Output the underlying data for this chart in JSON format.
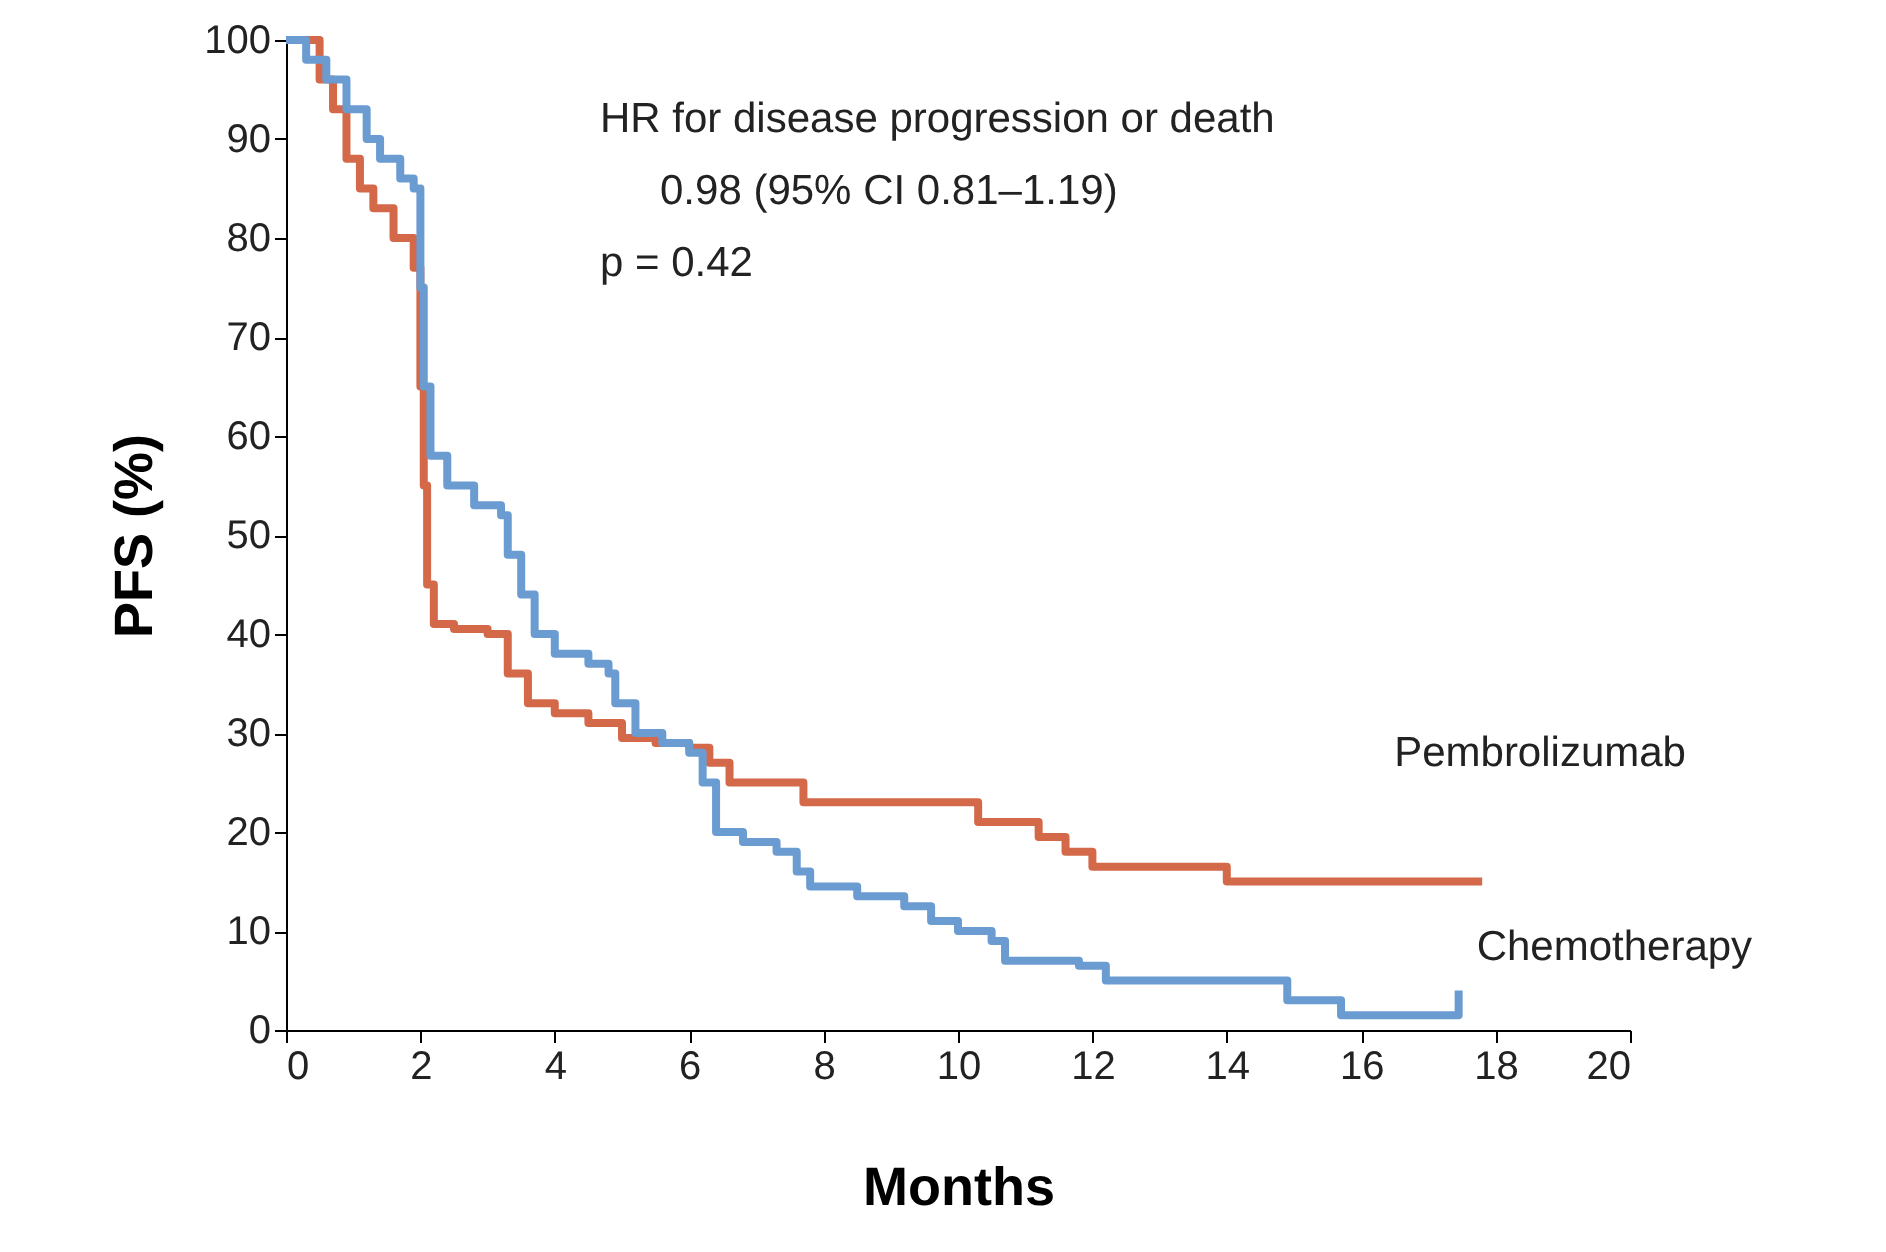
{
  "chart_data": {
    "type": "step",
    "xlabel": "Months",
    "ylabel": "PFS (%)",
    "annotations": [
      "HR for disease progression or death",
      "0.98 (95% CI 0.81–1.19)",
      "p = 0.42"
    ],
    "xlim": [
      0,
      20
    ],
    "xticks": [
      0,
      2,
      4,
      6,
      8,
      10,
      12,
      14,
      16,
      18,
      20
    ],
    "ylim": [
      0,
      100
    ],
    "yticks": [
      0,
      10,
      20,
      30,
      40,
      50,
      60,
      70,
      80,
      90,
      100
    ],
    "grid": false,
    "legend": false,
    "line_style": "solid",
    "series": [
      {
        "name": "Pembrolizumab",
        "color": "#d4694a",
        "x": [
          0,
          0.5,
          0.7,
          0.9,
          1.1,
          1.3,
          1.6,
          1.9,
          2.0,
          2.05,
          2.1,
          2.2,
          2.5,
          3.0,
          3.3,
          3.6,
          4.0,
          4.5,
          5.0,
          5.5,
          6.0,
          6.3,
          6.6,
          7.0,
          7.7,
          9.7,
          10.3,
          11.2,
          11.6,
          12.0,
          12.7,
          14.0,
          17.8
        ],
        "values": [
          100,
          96,
          93,
          88,
          85,
          83,
          80,
          77,
          65,
          55,
          45,
          41,
          40.5,
          40,
          36,
          33,
          32,
          31,
          29.5,
          29,
          28.5,
          27,
          25,
          25,
          23,
          23,
          21,
          19.5,
          18,
          16.5,
          16.5,
          15,
          15
        ]
      },
      {
        "name": "Chemotherapy",
        "color": "#6a9bd1",
        "x": [
          0,
          0.3,
          0.6,
          0.9,
          1.2,
          1.4,
          1.7,
          1.9,
          2.0,
          2.05,
          2.15,
          2.4,
          2.8,
          3.2,
          3.3,
          3.5,
          3.7,
          4.0,
          4.5,
          4.8,
          4.9,
          5.2,
          5.6,
          6.0,
          6.2,
          6.4,
          6.8,
          7.3,
          7.6,
          7.8,
          8.5,
          9.2,
          9.6,
          10.0,
          10.5,
          10.7,
          11.8,
          12.2,
          14.0,
          14.9,
          15.7,
          17.4,
          17.45
        ],
        "values": [
          100,
          98,
          96,
          93,
          90,
          88,
          86,
          85,
          75,
          65,
          58,
          55,
          53,
          52,
          48,
          44,
          40,
          38,
          37,
          36,
          33,
          30,
          29,
          28,
          25,
          20,
          19,
          18,
          16,
          14.5,
          13.5,
          12.5,
          11,
          10,
          9,
          7,
          6.5,
          5,
          5,
          3,
          1.5,
          1.5,
          4
        ]
      }
    ]
  }
}
